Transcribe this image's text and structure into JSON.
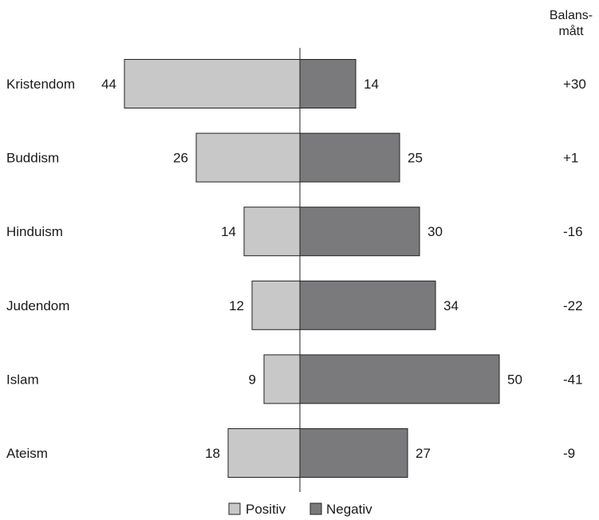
{
  "chart_data": {
    "type": "bar",
    "orientation": "diverging-horizontal",
    "categories": [
      "Kristendom",
      "Buddism",
      "Hinduism",
      "Judendom",
      "Islam",
      "Ateism"
    ],
    "series": [
      {
        "name": "Positiv",
        "values": [
          44,
          26,
          14,
          12,
          9,
          18
        ],
        "color": "#c8c8c8"
      },
      {
        "name": "Negativ",
        "values": [
          14,
          25,
          30,
          34,
          50,
          27
        ],
        "color": "#7a7a7c"
      }
    ],
    "balance_header": [
      "Balans-",
      "mått"
    ],
    "balance": [
      "+30",
      "+1",
      "-16",
      "-22",
      "-41",
      "-9"
    ],
    "legend_position": "bottom-center",
    "grid": false
  }
}
